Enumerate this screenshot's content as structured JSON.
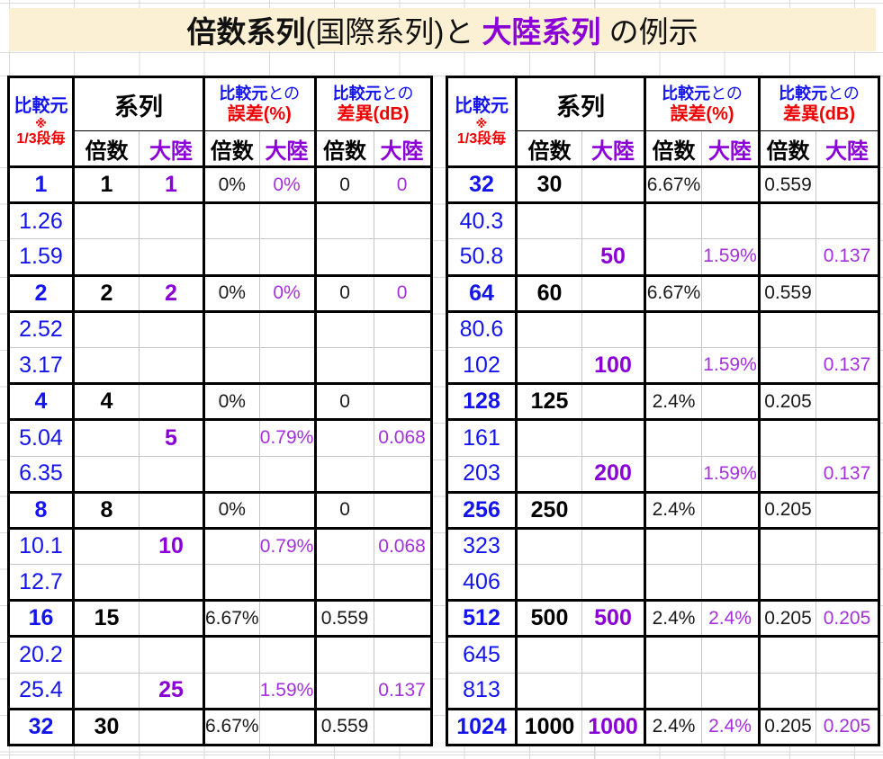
{
  "title": {
    "part1": "倍数系列",
    "part2": "(国際系列)",
    "part3": "と ",
    "part4": "大陸系列",
    "part5": " の例示"
  },
  "colors": {
    "title_background": "#FBF0D3",
    "blue_comparison": "#1414EE",
    "purple_continental": "#8B00D6",
    "purple_values": "#A431DB",
    "red_header": "#EE0000",
    "gridline_gray": "#D9D9D9",
    "thin_border_gray": "#C6C6C6",
    "thick_border": "#000000"
  },
  "header": {
    "src_title": "比較元",
    "src_note1": "※",
    "src_note2": "1/3段毎",
    "series_title": "系列",
    "vs_bold": "比較元",
    "vs_rest": "との",
    "err_label": "誤差(%)",
    "diff_label": "差異(dB)",
    "sub_mult": "倍数",
    "sub_cont": "大陸"
  },
  "tables": [
    {
      "name": "left-table",
      "rows": [
        {
          "src": "1",
          "mult": "1",
          "cont": "1",
          "err_m": "0%",
          "err_c": "0%",
          "diff_m": "0",
          "diff_c": "0",
          "main": true
        },
        {
          "src": "1.26"
        },
        {
          "src": "1.59"
        },
        {
          "src": "2",
          "mult": "2",
          "cont": "2",
          "err_m": "0%",
          "err_c": "0%",
          "diff_m": "0",
          "diff_c": "0",
          "main": true
        },
        {
          "src": "2.52"
        },
        {
          "src": "3.17"
        },
        {
          "src": "4",
          "mult": "4",
          "err_m": "0%",
          "diff_m": "0",
          "main": true
        },
        {
          "src": "5.04",
          "cont": "5",
          "err_c": "0.79%",
          "diff_c": "0.068"
        },
        {
          "src": "6.35"
        },
        {
          "src": "8",
          "mult": "8",
          "err_m": "0%",
          "diff_m": "0",
          "main": true
        },
        {
          "src": "10.1",
          "cont": "10",
          "err_c": "0.79%",
          "diff_c": "0.068"
        },
        {
          "src": "12.7"
        },
        {
          "src": "16",
          "mult": "15",
          "err_m": "6.67%",
          "diff_m": "0.559",
          "main": true
        },
        {
          "src": "20.2"
        },
        {
          "src": "25.4",
          "cont": "25",
          "err_c": "1.59%",
          "diff_c": "0.137"
        },
        {
          "src": "32",
          "mult": "30",
          "err_m": "6.67%",
          "diff_m": "0.559",
          "main": true
        }
      ]
    },
    {
      "name": "right-table",
      "rows": [
        {
          "src": "32",
          "mult": "30",
          "err_m": "6.67%",
          "diff_m": "0.559",
          "main": true
        },
        {
          "src": "40.3"
        },
        {
          "src": "50.8",
          "cont": "50",
          "err_c": "1.59%",
          "diff_c": "0.137"
        },
        {
          "src": "64",
          "mult": "60",
          "err_m": "6.67%",
          "diff_m": "0.559",
          "main": true
        },
        {
          "src": "80.6"
        },
        {
          "src": "102",
          "cont": "100",
          "err_c": "1.59%",
          "diff_c": "0.137"
        },
        {
          "src": "128",
          "mult": "125",
          "err_m": "2.4%",
          "diff_m": "0.205",
          "main": true
        },
        {
          "src": "161"
        },
        {
          "src": "203",
          "cont": "200",
          "err_c": "1.59%",
          "diff_c": "0.137"
        },
        {
          "src": "256",
          "mult": "250",
          "err_m": "2.4%",
          "diff_m": "0.205",
          "main": true
        },
        {
          "src": "323"
        },
        {
          "src": "406"
        },
        {
          "src": "512",
          "mult": "500",
          "cont": "500",
          "err_m": "2.4%",
          "err_c": "2.4%",
          "diff_m": "0.205",
          "diff_c": "0.205",
          "main": true
        },
        {
          "src": "645"
        },
        {
          "src": "813"
        },
        {
          "src": "1024",
          "mult": "1000",
          "cont": "1000",
          "err_m": "2.4%",
          "err_c": "2.4%",
          "diff_m": "0.205",
          "diff_c": "0.205",
          "main": true
        }
      ]
    }
  ]
}
